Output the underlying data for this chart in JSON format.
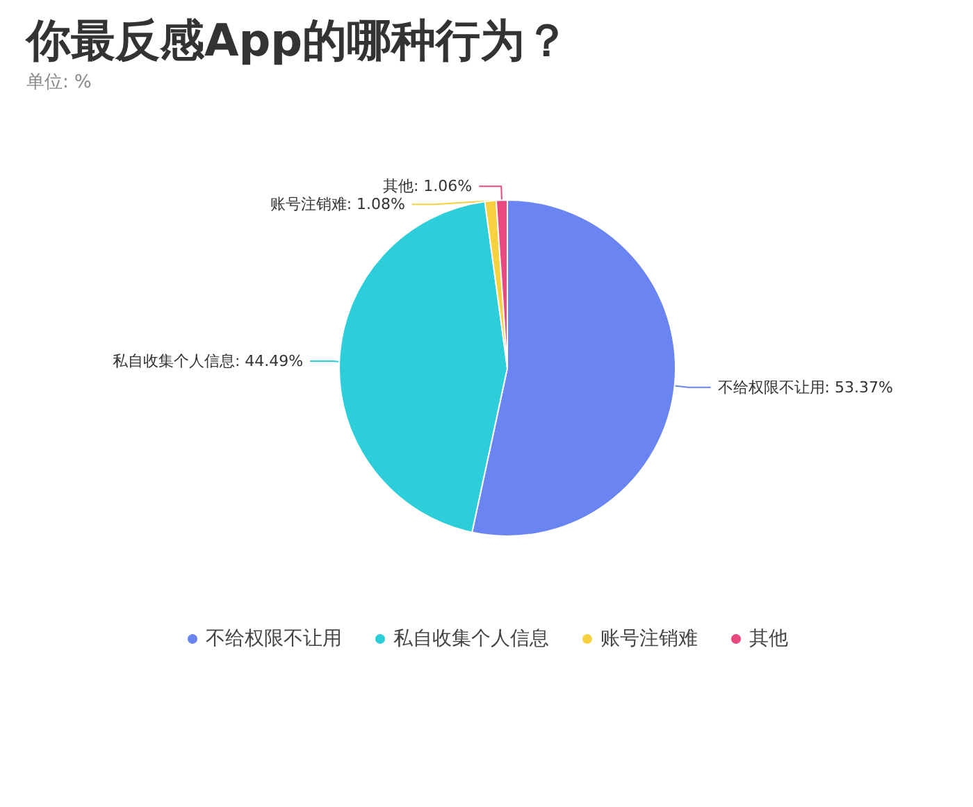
{
  "chart_data": {
    "type": "pie",
    "title": "你最反感App的哪种行为？",
    "subtitle": "单位: %",
    "categories": [
      "不给权限不让用",
      "私自收集个人信息",
      "账号注销难",
      "其他"
    ],
    "values": [
      53.37,
      44.49,
      1.08,
      1.06
    ],
    "value_labels": [
      "不给权限不让用: 53.37%",
      "私自收集个人信息: 44.49%",
      "账号注销难: 1.08%",
      "其他: 1.06%"
    ],
    "colors": [
      "#6a85f2",
      "#2ccfd9",
      "#f7d23e",
      "#e84a7f"
    ],
    "legend": "bottom"
  }
}
